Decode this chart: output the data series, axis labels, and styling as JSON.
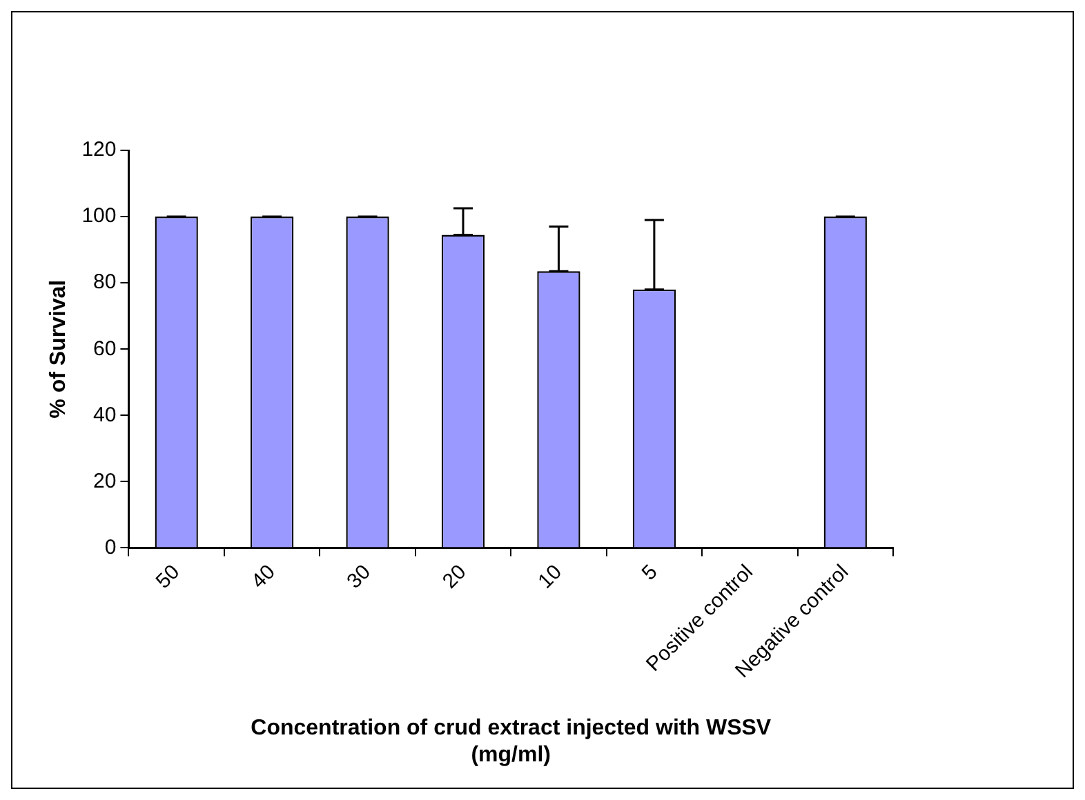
{
  "chart_data": {
    "type": "bar",
    "xlabel": "Concentration of crud extract injected with WSSV\n(mg/ml)",
    "ylabel": "% of Survival",
    "categories": [
      "50",
      "40",
      "30",
      "20",
      "10",
      "5",
      "Positive control",
      "Negative control"
    ],
    "values": [
      100,
      100,
      100,
      94.5,
      83.5,
      78,
      0,
      100
    ],
    "errors": [
      [
        100,
        100
      ],
      [
        100,
        100
      ],
      [
        100,
        100
      ],
      [
        94.5,
        102.5
      ],
      [
        83.5,
        97
      ],
      [
        78,
        99
      ],
      null,
      [
        100,
        100
      ]
    ],
    "color": "#9999ff",
    "ylim": [
      0,
      120
    ],
    "yticks": [
      0,
      20,
      40,
      60,
      80,
      100,
      120
    ],
    "grid": false,
    "legend": false
  }
}
